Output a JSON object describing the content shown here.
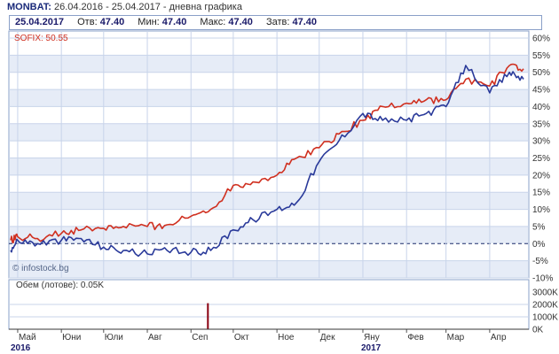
{
  "header": {
    "symbol": "MONBAT:",
    "period": "26.04.2016 - 25.04.2017 - дневна графика"
  },
  "info": {
    "date": "25.04.2017",
    "open_label": "Отв:",
    "open_value": "47.40",
    "low_label": "Мин:",
    "low_value": "47.40",
    "high_label": "Макс:",
    "high_value": "47.40",
    "close_label": "Затв:",
    "close_value": "47.40"
  },
  "colors": {
    "monbat": "#2a3a9a",
    "sofix": "#d03020",
    "volume": "#8a0010",
    "grid": "#c8d4ea",
    "band": "#e6ecf7"
  },
  "chart_data": [
    {
      "type": "line",
      "legend": "SOFIX: 50.55",
      "watermark": "© infostock.bg",
      "ylim": [
        -10,
        60
      ],
      "yticks": [
        "60%",
        "55%",
        "50%",
        "45%",
        "40%",
        "35%",
        "30%",
        "25%",
        "20%",
        "15%",
        "10%",
        "5%",
        "0%",
        "-5%",
        "-10%"
      ],
      "x": [
        "26.04.2016",
        "01.05.2016",
        "15.05.2016",
        "01.06.2016",
        "15.06.2016",
        "01.07.2016",
        "15.07.2016",
        "01.08.2016",
        "15.08.2016",
        "01.09.2016",
        "15.09.2016",
        "01.10.2016",
        "15.10.2016",
        "01.11.2016",
        "15.11.2016",
        "01.12.2016",
        "15.12.2016",
        "01.01.2017",
        "15.01.2017",
        "01.02.2017",
        "15.02.2017",
        "01.03.2017",
        "15.03.2017",
        "01.04.2017",
        "15.04.2017",
        "25.04.2017"
      ],
      "series": [
        {
          "name": "MONBAT",
          "values": [
            -2,
            1,
            0,
            1,
            1.5,
            -1,
            -2,
            -3,
            -2,
            -2.5,
            -2,
            4,
            7,
            10,
            12,
            24,
            30,
            38,
            36,
            36,
            38,
            40,
            52,
            44,
            50,
            48
          ]
        },
        {
          "name": "SOFIX",
          "values": [
            1,
            2,
            1.5,
            3,
            4,
            4.5,
            5,
            5,
            5.5,
            8,
            10,
            17,
            18,
            20,
            25,
            28,
            32,
            36,
            40,
            41,
            42,
            42,
            48,
            46,
            52,
            51
          ]
        }
      ]
    },
    {
      "type": "bar",
      "legend": "Обем (лотове): 0.05K",
      "ylim": [
        0,
        3000
      ],
      "yticks": [
        "3000K",
        "2000K",
        "1000K",
        "0K"
      ],
      "x": [
        "13.09.2016"
      ],
      "values": [
        2100
      ]
    }
  ],
  "months": [
    "Май",
    "Юни",
    "Юли",
    "Авг",
    "Сеп",
    "Окт",
    "Ное",
    "Дек",
    "Яну",
    "Фев",
    "Мар",
    "Апр"
  ],
  "years": [
    "2016",
    "2017"
  ]
}
